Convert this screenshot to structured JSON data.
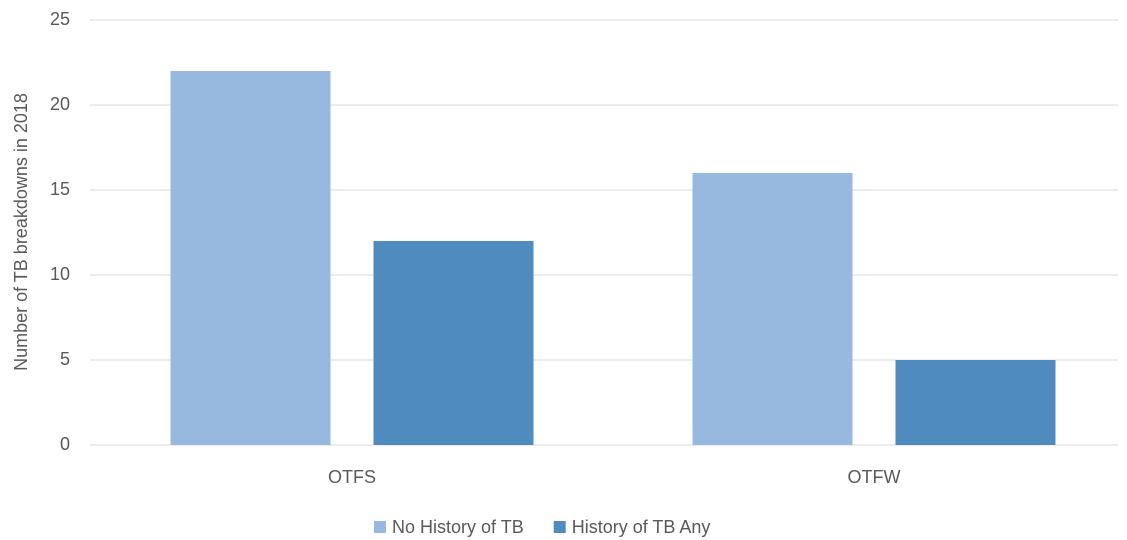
{
  "chart_data": {
    "type": "bar",
    "y_label": "Number of TB breakdowns in 2018",
    "categories": [
      "OTFS",
      "OTFW"
    ],
    "series": [
      {
        "name": "No History of TB",
        "color": "#97b9e0",
        "values": [
          22,
          16
        ]
      },
      {
        "name": "History of TB Any",
        "color": "#4f8bbf",
        "values": [
          12,
          5
        ]
      }
    ],
    "ylim": [
      0,
      25
    ],
    "yticks": [
      0,
      5,
      10,
      15,
      20,
      25
    ],
    "grid": true,
    "legend": "bottom"
  }
}
